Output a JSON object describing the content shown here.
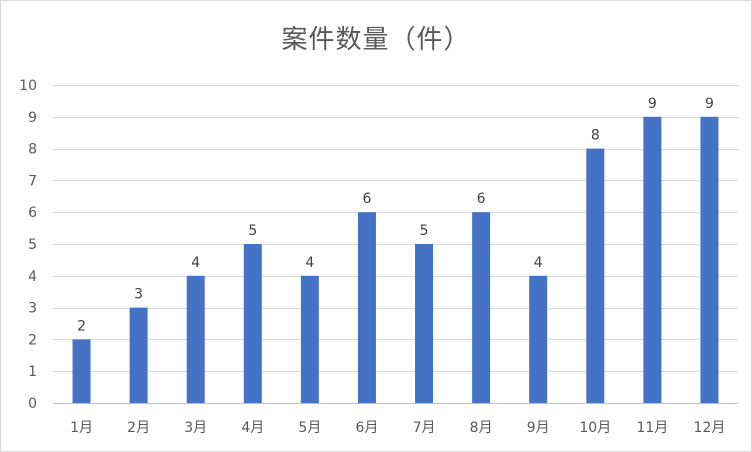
{
  "chart_data": {
    "type": "bar",
    "title": "案件数量（件）",
    "xlabel": "",
    "ylabel": "",
    "categories": [
      "1月",
      "2月",
      "3月",
      "4月",
      "5月",
      "6月",
      "7月",
      "8月",
      "9月",
      "10月",
      "11月",
      "12月"
    ],
    "values": [
      2,
      3,
      4,
      5,
      4,
      6,
      5,
      6,
      4,
      8,
      9,
      9
    ],
    "ylim": [
      0,
      10
    ],
    "yticks": [
      0,
      1,
      2,
      3,
      4,
      5,
      6,
      7,
      8,
      9,
      10
    ],
    "grid": true,
    "legend": "none",
    "data_labels": true,
    "colors": {
      "bar": "#4472c4",
      "grid": "#d9d9d9",
      "axis": "#bfbfbf",
      "text": "#595959"
    }
  }
}
